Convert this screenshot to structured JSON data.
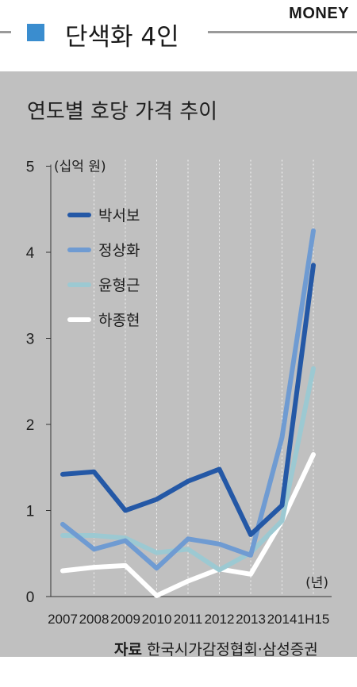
{
  "header": {
    "title": "단색화 4인",
    "brand": "MONEY",
    "accent": "#3a8dcf"
  },
  "subtitle": "연도별 호당 가격 추이",
  "source": {
    "label": "자료",
    "text": "한국시가감정협회·삼성증권"
  },
  "chart_data": {
    "type": "line",
    "title": "연도별 호당 가격 추이",
    "ylabel": "(십억 원)",
    "xlabel": "(년)",
    "ylim": [
      0,
      5
    ],
    "yticks": [
      "0",
      "1",
      "2",
      "3",
      "4",
      "5"
    ],
    "categories": [
      "2007",
      "2008",
      "2009",
      "2010",
      "2011",
      "2012",
      "2013",
      "2014",
      "1H15"
    ],
    "grid": "vertical-dashed",
    "legend_placement": "top-left",
    "background": "#c0c0c0",
    "series": [
      {
        "name": "박서보",
        "color": "#2458a6",
        "values": [
          1.42,
          1.45,
          1.0,
          1.13,
          1.34,
          1.48,
          0.72,
          1.06,
          3.85
        ]
      },
      {
        "name": "정상화",
        "color": "#6f9bd2",
        "values": [
          0.84,
          0.55,
          0.65,
          0.33,
          0.67,
          0.61,
          0.48,
          1.85,
          4.25
        ]
      },
      {
        "name": "윤형근",
        "color": "#9cc9d2",
        "values": [
          0.71,
          0.71,
          0.68,
          0.51,
          0.55,
          0.31,
          0.51,
          0.88,
          2.65
        ]
      },
      {
        "name": "하종현",
        "color": "#ffffff",
        "values": [
          0.3,
          0.34,
          0.36,
          0.01,
          0.18,
          0.32,
          0.26,
          0.88,
          1.65
        ]
      }
    ]
  }
}
